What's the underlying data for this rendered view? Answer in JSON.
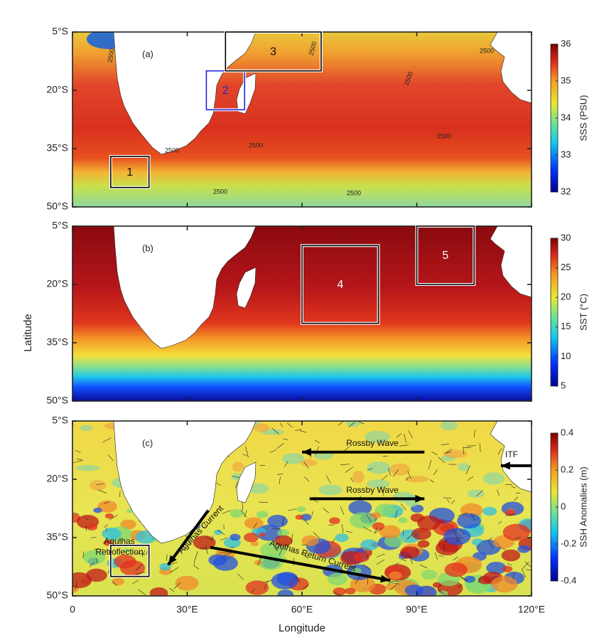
{
  "axes": {
    "xlabel": "Longitude",
    "ylabel": "Latitude",
    "xlim": [
      0,
      120
    ],
    "ylim": [
      -5,
      -50
    ],
    "xticks": [
      0,
      {
        "value": 30,
        "label": "30°E"
      },
      {
        "value": 60,
        "label": "60°E"
      },
      {
        "value": 90,
        "label": "90°E"
      },
      {
        "value": 120,
        "label": "120°E"
      }
    ],
    "yticks": [
      {
        "value": -5,
        "label": "5°S"
      },
      {
        "value": -20,
        "label": "20°S"
      },
      {
        "value": -35,
        "label": "35°S"
      },
      {
        "value": -50,
        "label": "50°S"
      }
    ]
  },
  "panels": [
    {
      "label": "(a)",
      "colorbar": {
        "label": "SSS (PSU)",
        "lim": [
          32,
          36
        ],
        "ticks": [
          32,
          33,
          34,
          35,
          36
        ]
      },
      "boxes": [
        {
          "label": "1",
          "lon": [
            10,
            20
          ],
          "lat": [
            -37,
            -45
          ],
          "color": "#000000"
        },
        {
          "label": "2",
          "lon": [
            35,
            45
          ],
          "lat": [
            -15,
            -25
          ],
          "color": "#2222dd"
        },
        {
          "label": "3",
          "lon": [
            40,
            65
          ],
          "lat": [
            -5,
            -15
          ],
          "color": "#000000"
        }
      ],
      "contour_labels": [
        "2500",
        "2500",
        "2500",
        "2500",
        "2500",
        "2500",
        "2500",
        "2500",
        "2500"
      ]
    },
    {
      "label": "(b)",
      "colorbar": {
        "label": "SST (°C)",
        "lim": [
          5,
          30
        ],
        "ticks": [
          5,
          10,
          15,
          20,
          25,
          30
        ]
      },
      "boxes": [
        {
          "label": "4",
          "lon": [
            60,
            80
          ],
          "lat": [
            -10,
            -30
          ],
          "color": "#000000"
        },
        {
          "label": "5",
          "lon": [
            90,
            105
          ],
          "lat": [
            -5,
            -20
          ],
          "color": "#000000"
        }
      ]
    },
    {
      "label": "(c)",
      "colorbar": {
        "label": "SSH Anomalies (m)",
        "lim": [
          -0.4,
          0.4
        ],
        "ticks": [
          -0.4,
          -0.2,
          0,
          0.2,
          0.4
        ]
      },
      "boxes": [
        {
          "lon": [
            10,
            20
          ],
          "lat": [
            -37,
            -45
          ],
          "color": "#000000"
        }
      ],
      "annotations": [
        "Rossby Wave",
        "Rossby Wave",
        "ITF",
        "Agulhas Current",
        "Agulhas",
        "Retroflection",
        "Agulhas Return Current"
      ],
      "arrows": [
        {
          "from": [
            92,
            -13
          ],
          "to": [
            60,
            -13
          ]
        },
        {
          "from": [
            62,
            -25
          ],
          "to": [
            92,
            -25
          ]
        },
        {
          "from": [
            120,
            -16.5
          ],
          "to": [
            112,
            -16.5
          ]
        },
        {
          "from": [
            35.5,
            -28
          ],
          "to": [
            25,
            -42
          ]
        },
        {
          "from": [
            36,
            -37.5
          ],
          "to": [
            83,
            -46
          ]
        }
      ]
    }
  ]
}
